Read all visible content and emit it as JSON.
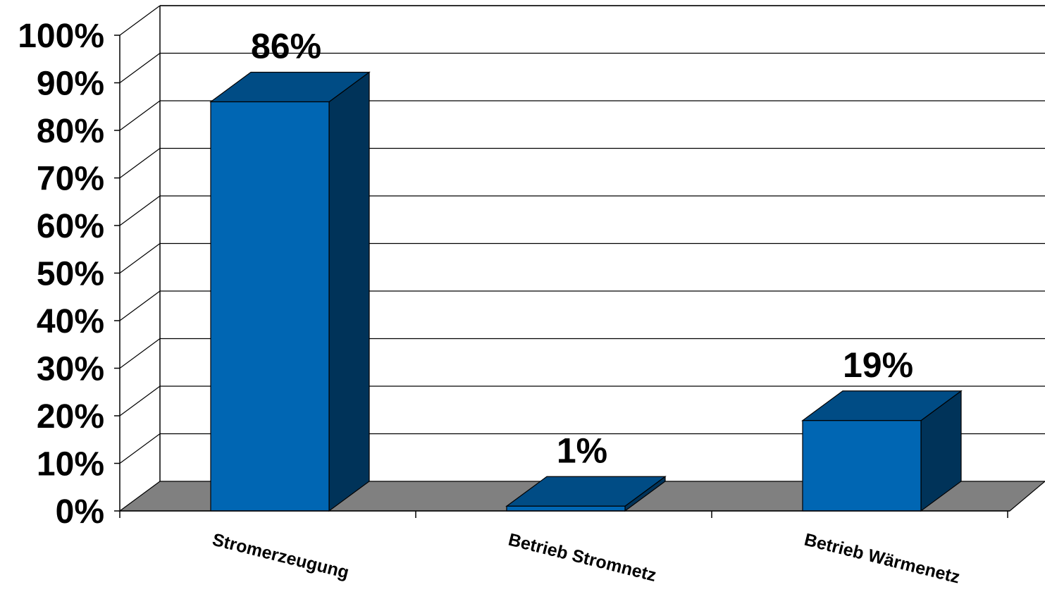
{
  "chart_data": {
    "type": "bar",
    "categories": [
      "Stromerzeugung",
      "Betrieb Stromnetz",
      "Betrieb Wärmenetz"
    ],
    "values": [
      86,
      1,
      19
    ],
    "data_labels": [
      "86%",
      "1%",
      "19%"
    ],
    "ylim": [
      0,
      100
    ],
    "y_ticks": [
      0,
      10,
      20,
      30,
      40,
      50,
      60,
      70,
      80,
      90,
      100
    ],
    "y_tick_labels": [
      "0%",
      "10%",
      "20%",
      "30%",
      "40%",
      "50%",
      "60%",
      "70%",
      "80%",
      "90%",
      "100%"
    ],
    "grid": true,
    "legend": "none",
    "style": "3d-column",
    "colors": {
      "bar_front": "#0066B3",
      "bar_top": "#004C85",
      "bar_side": "#003359",
      "floor": "#808080",
      "grid": "#000000"
    }
  }
}
